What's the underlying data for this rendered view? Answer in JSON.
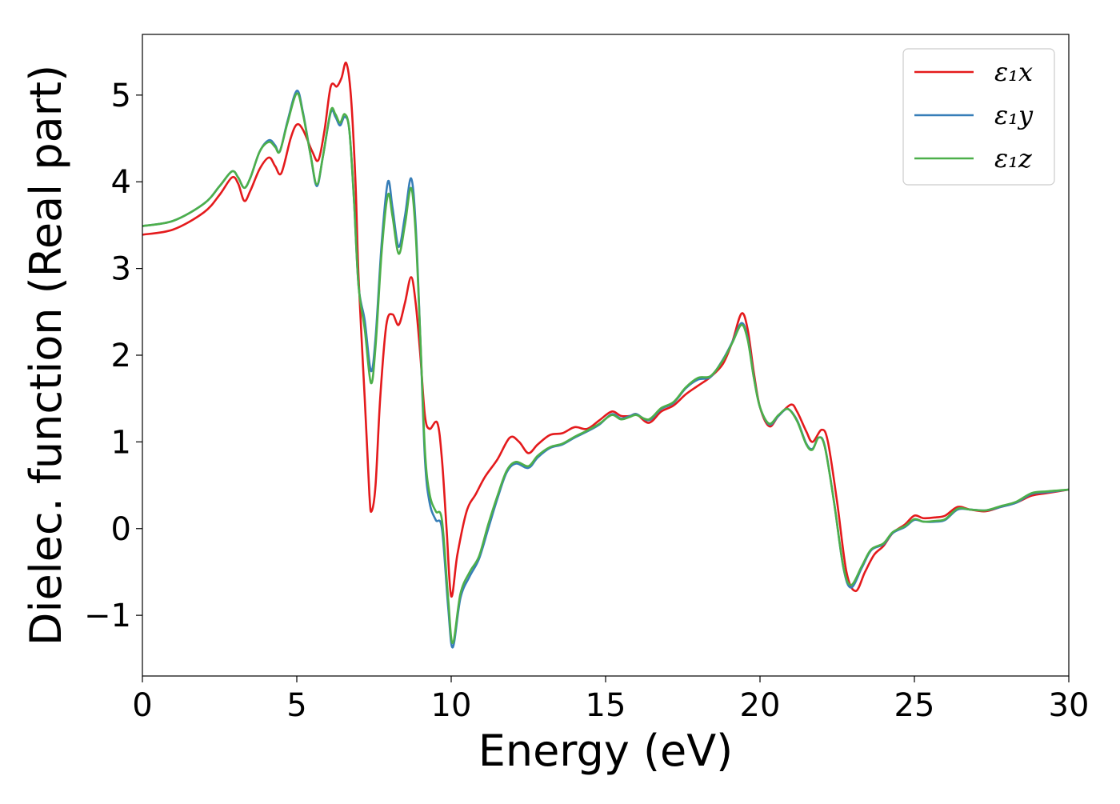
{
  "chart_data": {
    "type": "line",
    "xlabel": "Energy (eV)",
    "ylabel": "Dielec. function (Real part)",
    "xlim": [
      0,
      30
    ],
    "ylim": [
      -1.7,
      5.7
    ],
    "xticks": [
      0,
      5,
      10,
      15,
      20,
      25,
      30
    ],
    "xtick_labels": [
      "0",
      "5",
      "10",
      "15",
      "20",
      "25",
      "30"
    ],
    "yticks": [
      -1,
      0,
      1,
      2,
      3,
      4,
      5
    ],
    "ytick_labels": [
      "−1",
      "0",
      "1",
      "2",
      "3",
      "4",
      "5"
    ],
    "grid": false,
    "legend_position": "top-right",
    "series": [
      {
        "name": "ε₁x",
        "color": "#e41a1c",
        "points": [
          [
            0,
            3.39
          ],
          [
            1,
            3.45
          ],
          [
            2,
            3.65
          ],
          [
            2.5,
            3.85
          ],
          [
            2.9,
            4.05
          ],
          [
            3.1,
            3.98
          ],
          [
            3.3,
            3.78
          ],
          [
            3.5,
            3.9
          ],
          [
            3.8,
            4.15
          ],
          [
            4.1,
            4.28
          ],
          [
            4.3,
            4.18
          ],
          [
            4.5,
            4.1
          ],
          [
            4.8,
            4.5
          ],
          [
            5.0,
            4.66
          ],
          [
            5.2,
            4.6
          ],
          [
            5.5,
            4.35
          ],
          [
            5.7,
            4.25
          ],
          [
            5.9,
            4.6
          ],
          [
            6.1,
            5.1
          ],
          [
            6.3,
            5.1
          ],
          [
            6.45,
            5.2
          ],
          [
            6.6,
            5.37
          ],
          [
            6.75,
            5.0
          ],
          [
            6.9,
            4.0
          ],
          [
            7.0,
            2.9
          ],
          [
            7.2,
            1.5
          ],
          [
            7.35,
            0.4
          ],
          [
            7.42,
            0.2
          ],
          [
            7.55,
            0.5
          ],
          [
            7.7,
            1.5
          ],
          [
            7.9,
            2.35
          ],
          [
            8.1,
            2.47
          ],
          [
            8.3,
            2.35
          ],
          [
            8.5,
            2.6
          ],
          [
            8.7,
            2.9
          ],
          [
            8.85,
            2.6
          ],
          [
            9.0,
            2.0
          ],
          [
            9.15,
            1.3
          ],
          [
            9.3,
            1.15
          ],
          [
            9.55,
            1.22
          ],
          [
            9.7,
            0.8
          ],
          [
            9.85,
            0.0
          ],
          [
            10.0,
            -0.78
          ],
          [
            10.2,
            -0.3
          ],
          [
            10.5,
            0.2
          ],
          [
            10.8,
            0.4
          ],
          [
            11.1,
            0.6
          ],
          [
            11.5,
            0.8
          ],
          [
            11.9,
            1.05
          ],
          [
            12.2,
            1.0
          ],
          [
            12.5,
            0.87
          ],
          [
            12.8,
            0.97
          ],
          [
            13.2,
            1.08
          ],
          [
            13.6,
            1.1
          ],
          [
            14.0,
            1.17
          ],
          [
            14.4,
            1.15
          ],
          [
            14.8,
            1.25
          ],
          [
            15.2,
            1.35
          ],
          [
            15.5,
            1.3
          ],
          [
            15.8,
            1.3
          ],
          [
            16.0,
            1.32
          ],
          [
            16.4,
            1.22
          ],
          [
            16.8,
            1.35
          ],
          [
            17.2,
            1.42
          ],
          [
            17.6,
            1.55
          ],
          [
            18.0,
            1.65
          ],
          [
            18.4,
            1.75
          ],
          [
            18.8,
            1.9
          ],
          [
            19.1,
            2.15
          ],
          [
            19.4,
            2.48
          ],
          [
            19.6,
            2.3
          ],
          [
            19.8,
            1.8
          ],
          [
            20.0,
            1.4
          ],
          [
            20.3,
            1.18
          ],
          [
            20.6,
            1.3
          ],
          [
            21.0,
            1.43
          ],
          [
            21.2,
            1.35
          ],
          [
            21.5,
            1.12
          ],
          [
            21.7,
            1.0
          ],
          [
            22.0,
            1.14
          ],
          [
            22.2,
            1.0
          ],
          [
            22.5,
            0.3
          ],
          [
            22.8,
            -0.5
          ],
          [
            23.1,
            -0.72
          ],
          [
            23.4,
            -0.5
          ],
          [
            23.7,
            -0.3
          ],
          [
            24.0,
            -0.2
          ],
          [
            24.3,
            -0.05
          ],
          [
            24.7,
            0.05
          ],
          [
            25.0,
            0.15
          ],
          [
            25.3,
            0.12
          ],
          [
            25.7,
            0.13
          ],
          [
            26.0,
            0.15
          ],
          [
            26.4,
            0.25
          ],
          [
            26.8,
            0.22
          ],
          [
            27.3,
            0.2
          ],
          [
            27.8,
            0.25
          ],
          [
            28.3,
            0.3
          ],
          [
            28.8,
            0.38
          ],
          [
            29.3,
            0.41
          ],
          [
            30,
            0.45
          ]
        ]
      },
      {
        "name": "ε₁y",
        "color": "#377eb8",
        "points": [
          [
            0,
            3.49
          ],
          [
            1,
            3.55
          ],
          [
            2,
            3.75
          ],
          [
            2.5,
            3.95
          ],
          [
            2.9,
            4.12
          ],
          [
            3.1,
            4.05
          ],
          [
            3.3,
            3.93
          ],
          [
            3.5,
            4.05
          ],
          [
            3.8,
            4.35
          ],
          [
            4.1,
            4.48
          ],
          [
            4.3,
            4.42
          ],
          [
            4.45,
            4.35
          ],
          [
            4.7,
            4.7
          ],
          [
            5.0,
            5.05
          ],
          [
            5.2,
            4.8
          ],
          [
            5.45,
            4.3
          ],
          [
            5.65,
            3.95
          ],
          [
            5.85,
            4.3
          ],
          [
            6.1,
            4.8
          ],
          [
            6.25,
            4.75
          ],
          [
            6.4,
            4.65
          ],
          [
            6.55,
            4.75
          ],
          [
            6.7,
            4.6
          ],
          [
            6.85,
            3.8
          ],
          [
            7.0,
            2.8
          ],
          [
            7.2,
            2.4
          ],
          [
            7.4,
            1.82
          ],
          [
            7.55,
            2.2
          ],
          [
            7.75,
            3.3
          ],
          [
            7.95,
            4.0
          ],
          [
            8.1,
            3.7
          ],
          [
            8.3,
            3.25
          ],
          [
            8.5,
            3.6
          ],
          [
            8.7,
            4.04
          ],
          [
            8.85,
            3.5
          ],
          [
            9.0,
            2.2
          ],
          [
            9.15,
            0.8
          ],
          [
            9.3,
            0.3
          ],
          [
            9.5,
            0.1
          ],
          [
            9.7,
            0.0
          ],
          [
            9.9,
            -0.9
          ],
          [
            10.05,
            -1.37
          ],
          [
            10.3,
            -0.8
          ],
          [
            10.6,
            -0.55
          ],
          [
            10.9,
            -0.35
          ],
          [
            11.2,
            0.0
          ],
          [
            11.5,
            0.35
          ],
          [
            11.8,
            0.65
          ],
          [
            12.1,
            0.75
          ],
          [
            12.5,
            0.7
          ],
          [
            12.8,
            0.82
          ],
          [
            13.2,
            0.93
          ],
          [
            13.6,
            0.97
          ],
          [
            14.0,
            1.05
          ],
          [
            14.4,
            1.12
          ],
          [
            14.8,
            1.2
          ],
          [
            15.2,
            1.32
          ],
          [
            15.5,
            1.27
          ],
          [
            15.8,
            1.3
          ],
          [
            16.0,
            1.32
          ],
          [
            16.4,
            1.25
          ],
          [
            16.8,
            1.38
          ],
          [
            17.2,
            1.45
          ],
          [
            17.6,
            1.62
          ],
          [
            18.0,
            1.72
          ],
          [
            18.4,
            1.75
          ],
          [
            18.8,
            1.95
          ],
          [
            19.1,
            2.15
          ],
          [
            19.4,
            2.37
          ],
          [
            19.6,
            2.2
          ],
          [
            19.8,
            1.75
          ],
          [
            20.0,
            1.4
          ],
          [
            20.3,
            1.2
          ],
          [
            20.6,
            1.3
          ],
          [
            20.9,
            1.38
          ],
          [
            21.2,
            1.25
          ],
          [
            21.5,
            0.98
          ],
          [
            21.7,
            0.92
          ],
          [
            21.9,
            1.05
          ],
          [
            22.1,
            0.95
          ],
          [
            22.4,
            0.3
          ],
          [
            22.7,
            -0.45
          ],
          [
            22.95,
            -0.68
          ],
          [
            23.3,
            -0.45
          ],
          [
            23.6,
            -0.25
          ],
          [
            24.0,
            -0.18
          ],
          [
            24.3,
            -0.05
          ],
          [
            24.7,
            0.02
          ],
          [
            25.0,
            0.1
          ],
          [
            25.3,
            0.08
          ],
          [
            25.7,
            0.08
          ],
          [
            26.0,
            0.1
          ],
          [
            26.4,
            0.22
          ],
          [
            26.8,
            0.22
          ],
          [
            27.3,
            0.21
          ],
          [
            27.8,
            0.25
          ],
          [
            28.3,
            0.3
          ],
          [
            28.8,
            0.4
          ],
          [
            29.3,
            0.42
          ],
          [
            30,
            0.45
          ]
        ]
      },
      {
        "name": "ε₁z",
        "color": "#4daf4a",
        "points": [
          [
            0,
            3.49
          ],
          [
            1,
            3.55
          ],
          [
            2,
            3.75
          ],
          [
            2.5,
            3.95
          ],
          [
            2.9,
            4.12
          ],
          [
            3.1,
            4.05
          ],
          [
            3.3,
            3.93
          ],
          [
            3.5,
            4.05
          ],
          [
            3.8,
            4.35
          ],
          [
            4.1,
            4.46
          ],
          [
            4.3,
            4.4
          ],
          [
            4.45,
            4.35
          ],
          [
            4.7,
            4.68
          ],
          [
            5.0,
            5.02
          ],
          [
            5.2,
            4.78
          ],
          [
            5.45,
            4.3
          ],
          [
            5.65,
            3.97
          ],
          [
            5.85,
            4.3
          ],
          [
            6.1,
            4.82
          ],
          [
            6.25,
            4.78
          ],
          [
            6.4,
            4.68
          ],
          [
            6.55,
            4.78
          ],
          [
            6.7,
            4.6
          ],
          [
            6.85,
            3.8
          ],
          [
            7.0,
            2.8
          ],
          [
            7.2,
            2.3
          ],
          [
            7.4,
            1.68
          ],
          [
            7.55,
            2.1
          ],
          [
            7.75,
            3.2
          ],
          [
            7.95,
            3.85
          ],
          [
            8.1,
            3.6
          ],
          [
            8.3,
            3.17
          ],
          [
            8.5,
            3.5
          ],
          [
            8.7,
            3.93
          ],
          [
            8.85,
            3.4
          ],
          [
            9.0,
            2.2
          ],
          [
            9.15,
            0.9
          ],
          [
            9.3,
            0.4
          ],
          [
            9.5,
            0.2
          ],
          [
            9.7,
            0.1
          ],
          [
            9.9,
            -0.8
          ],
          [
            10.05,
            -1.32
          ],
          [
            10.3,
            -0.75
          ],
          [
            10.6,
            -0.5
          ],
          [
            10.9,
            -0.32
          ],
          [
            11.2,
            0.05
          ],
          [
            11.5,
            0.38
          ],
          [
            11.8,
            0.67
          ],
          [
            12.1,
            0.77
          ],
          [
            12.5,
            0.72
          ],
          [
            12.8,
            0.84
          ],
          [
            13.2,
            0.94
          ],
          [
            13.6,
            0.98
          ],
          [
            14.0,
            1.06
          ],
          [
            14.4,
            1.13
          ],
          [
            14.8,
            1.21
          ],
          [
            15.2,
            1.31
          ],
          [
            15.5,
            1.26
          ],
          [
            15.8,
            1.29
          ],
          [
            16.0,
            1.31
          ],
          [
            16.4,
            1.26
          ],
          [
            16.8,
            1.39
          ],
          [
            17.2,
            1.46
          ],
          [
            17.6,
            1.63
          ],
          [
            18.0,
            1.74
          ],
          [
            18.4,
            1.76
          ],
          [
            18.8,
            1.94
          ],
          [
            19.1,
            2.14
          ],
          [
            19.4,
            2.35
          ],
          [
            19.6,
            2.18
          ],
          [
            19.8,
            1.74
          ],
          [
            20.0,
            1.4
          ],
          [
            20.3,
            1.21
          ],
          [
            20.6,
            1.31
          ],
          [
            20.9,
            1.38
          ],
          [
            21.2,
            1.24
          ],
          [
            21.5,
            0.97
          ],
          [
            21.7,
            0.91
          ],
          [
            21.9,
            1.05
          ],
          [
            22.1,
            0.94
          ],
          [
            22.4,
            0.3
          ],
          [
            22.7,
            -0.44
          ],
          [
            22.95,
            -0.65
          ],
          [
            23.3,
            -0.43
          ],
          [
            23.6,
            -0.24
          ],
          [
            24.0,
            -0.17
          ],
          [
            24.3,
            -0.04
          ],
          [
            24.7,
            0.03
          ],
          [
            25.0,
            0.11
          ],
          [
            25.3,
            0.08
          ],
          [
            25.7,
            0.09
          ],
          [
            26.0,
            0.11
          ],
          [
            26.4,
            0.23
          ],
          [
            26.8,
            0.22
          ],
          [
            27.3,
            0.21
          ],
          [
            27.8,
            0.26
          ],
          [
            28.3,
            0.31
          ],
          [
            28.8,
            0.41
          ],
          [
            29.3,
            0.43
          ],
          [
            30,
            0.45
          ]
        ]
      }
    ]
  }
}
